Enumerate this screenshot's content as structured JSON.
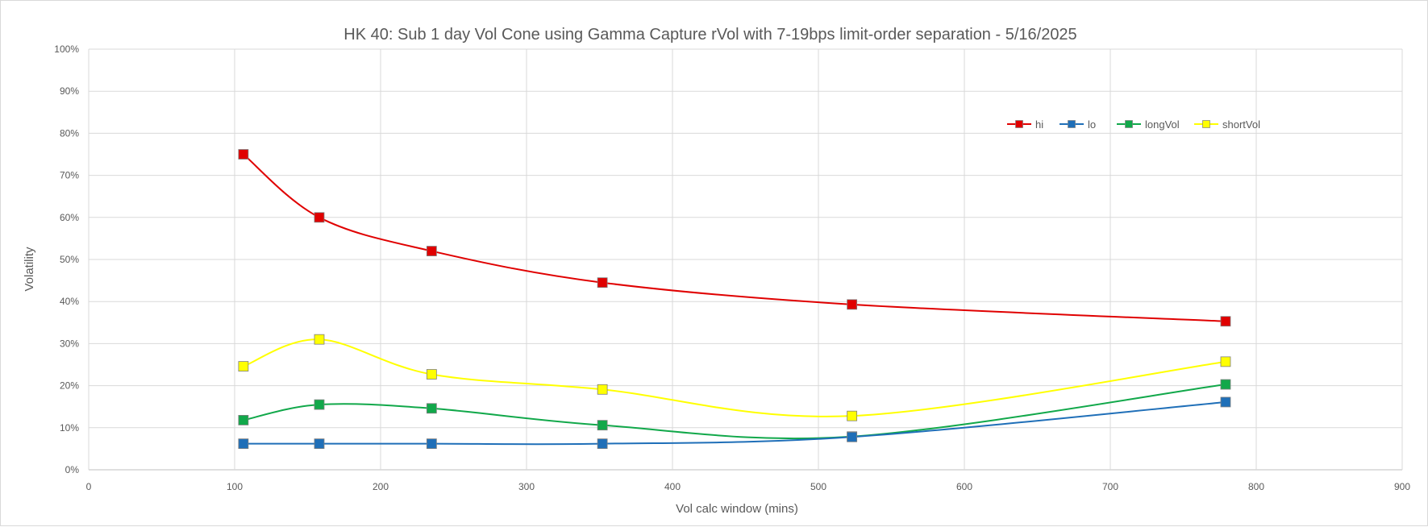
{
  "chart_data": {
    "type": "line",
    "title": "HK 40: Sub 1 day Vol Cone using Gamma Capture rVol with 7-19bps limit-order separation - 5/16/2025",
    "xlabel": "Vol calc window (mins)",
    "ylabel": "Volatility",
    "xlim": [
      0,
      900
    ],
    "ylim": [
      0,
      1.0
    ],
    "x_ticks": [
      0,
      100,
      200,
      300,
      400,
      500,
      600,
      700,
      800,
      900
    ],
    "x_tick_labels": [
      "0",
      "100",
      "200",
      "300",
      "400",
      "500",
      "600",
      "700",
      "800",
      "900"
    ],
    "y_ticks": [
      0,
      0.1,
      0.2,
      0.3,
      0.4,
      0.5,
      0.6,
      0.7,
      0.8,
      0.9,
      1.0
    ],
    "y_tick_labels": [
      "0%",
      "10%",
      "20%",
      "30%",
      "40%",
      "50%",
      "60%",
      "70%",
      "80%",
      "90%",
      "100%"
    ],
    "grid": true,
    "legend_position": "top-right",
    "x": [
      106,
      158,
      235,
      352,
      523,
      779
    ],
    "series": [
      {
        "name": "hi",
        "color": "#e00000",
        "marker_fill": "#e00000",
        "values": [
          0.75,
          0.6,
          0.52,
          0.445,
          0.393,
          0.353
        ]
      },
      {
        "name": "lo",
        "color": "#1f6fb8",
        "marker_fill": "#1f6fb8",
        "values": [
          0.062,
          0.062,
          0.062,
          0.062,
          0.078,
          0.161
        ]
      },
      {
        "name": "longVol",
        "color": "#11a84a",
        "marker_fill": "#11a84a",
        "values": [
          0.118,
          0.155,
          0.146,
          0.106,
          0.079,
          0.203
        ]
      },
      {
        "name": "shortVol",
        "color": "#ffff00",
        "marker_fill": "#ffff00",
        "values": [
          0.246,
          0.31,
          0.227,
          0.191,
          0.128,
          0.257
        ]
      }
    ]
  }
}
